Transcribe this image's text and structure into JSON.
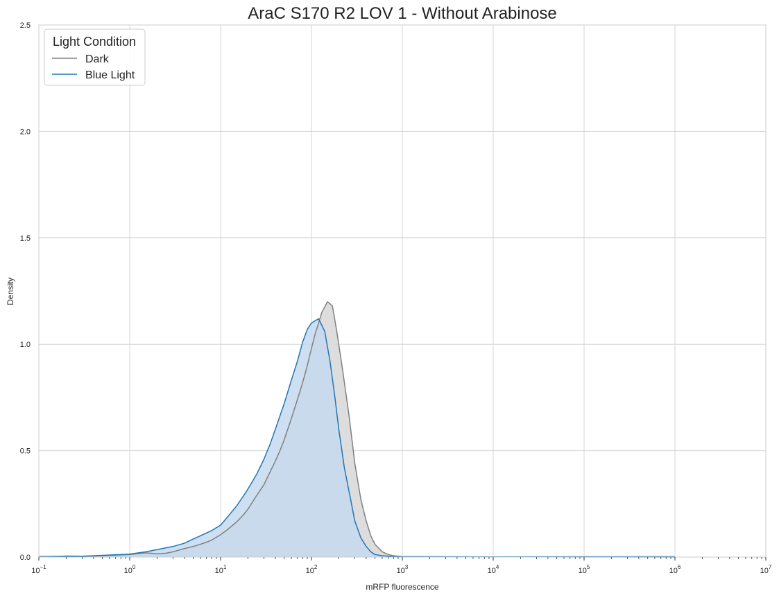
{
  "chart_data": {
    "type": "area",
    "title": "AraC S170 R2 LOV 1 - Without Arabinose",
    "xlabel": "mRFP fluorescence",
    "ylabel": "Density",
    "xscale": "log",
    "xlim": [
      0.1,
      10000000
    ],
    "ylim": [
      0,
      2.5
    ],
    "x_tick_labels": [
      {
        "base": "10",
        "exp": "−1"
      },
      {
        "base": "10",
        "exp": "0"
      },
      {
        "base": "10",
        "exp": "1"
      },
      {
        "base": "10",
        "exp": "2"
      },
      {
        "base": "10",
        "exp": "3"
      },
      {
        "base": "10",
        "exp": "4"
      },
      {
        "base": "10",
        "exp": "5"
      },
      {
        "base": "10",
        "exp": "6"
      },
      {
        "base": "10",
        "exp": "7"
      }
    ],
    "y_ticks": [
      0.0,
      0.5,
      1.0,
      1.5,
      2.0,
      2.5
    ],
    "y_tick_labels": [
      "0.0",
      "0.5",
      "1.0",
      "1.5",
      "2.0",
      "2.5"
    ],
    "grid": true,
    "legend": {
      "title": "Light Condition",
      "position": "top-left"
    },
    "series": [
      {
        "name": "Dark",
        "color": "#808080",
        "fill": "#d9d9d9",
        "points": [
          [
            0.1,
            0.003
          ],
          [
            0.15,
            0.002
          ],
          [
            0.2,
            0.005
          ],
          [
            0.3,
            0.004
          ],
          [
            0.5,
            0.006
          ],
          [
            0.8,
            0.01
          ],
          [
            1.0,
            0.012
          ],
          [
            1.5,
            0.02
          ],
          [
            2.0,
            0.015
          ],
          [
            2.5,
            0.018
          ],
          [
            3.0,
            0.025
          ],
          [
            4.0,
            0.04
          ],
          [
            5.0,
            0.05
          ],
          [
            6.0,
            0.06
          ],
          [
            7.0,
            0.07
          ],
          [
            8.0,
            0.08
          ],
          [
            10.0,
            0.105
          ],
          [
            12.0,
            0.13
          ],
          [
            15.0,
            0.165
          ],
          [
            18.0,
            0.2
          ],
          [
            20.0,
            0.225
          ],
          [
            25.0,
            0.29
          ],
          [
            30.0,
            0.34
          ],
          [
            35.0,
            0.4
          ],
          [
            40.0,
            0.45
          ],
          [
            45.0,
            0.5
          ],
          [
            50.0,
            0.55
          ],
          [
            60.0,
            0.65
          ],
          [
            70.0,
            0.74
          ],
          [
            80.0,
            0.82
          ],
          [
            90.0,
            0.9
          ],
          [
            100.0,
            0.98
          ],
          [
            110.0,
            1.05
          ],
          [
            120.0,
            1.1
          ],
          [
            130.0,
            1.15
          ],
          [
            150.0,
            1.2
          ],
          [
            170.0,
            1.18
          ],
          [
            190.0,
            1.06
          ],
          [
            220.0,
            0.88
          ],
          [
            260.0,
            0.66
          ],
          [
            300.0,
            0.44
          ],
          [
            350.0,
            0.27
          ],
          [
            400.0,
            0.17
          ],
          [
            450.0,
            0.1
          ],
          [
            500.0,
            0.06
          ],
          [
            600.0,
            0.025
          ],
          [
            700.0,
            0.012
          ],
          [
            800.0,
            0.006
          ],
          [
            1000.0,
            0.002
          ],
          [
            3000.0,
            0.001
          ],
          [
            100000.0,
            0.0005
          ],
          [
            1000000.0,
            0.0
          ]
        ]
      },
      {
        "name": "Blue Light",
        "color": "#1f77b4",
        "fill": "#c4d9ee",
        "points": [
          [
            0.1,
            0.002
          ],
          [
            0.2,
            0.004
          ],
          [
            0.3,
            0.004
          ],
          [
            0.5,
            0.008
          ],
          [
            0.8,
            0.012
          ],
          [
            1.0,
            0.014
          ],
          [
            1.5,
            0.025
          ],
          [
            2.0,
            0.035
          ],
          [
            3.0,
            0.05
          ],
          [
            4.0,
            0.065
          ],
          [
            5.0,
            0.085
          ],
          [
            6.0,
            0.1
          ],
          [
            8.0,
            0.125
          ],
          [
            10.0,
            0.15
          ],
          [
            12.0,
            0.19
          ],
          [
            15.0,
            0.24
          ],
          [
            18.0,
            0.29
          ],
          [
            20.0,
            0.32
          ],
          [
            25.0,
            0.39
          ],
          [
            30.0,
            0.46
          ],
          [
            35.0,
            0.53
          ],
          [
            40.0,
            0.6
          ],
          [
            50.0,
            0.72
          ],
          [
            60.0,
            0.83
          ],
          [
            70.0,
            0.92
          ],
          [
            80.0,
            1.01
          ],
          [
            90.0,
            1.07
          ],
          [
            100.0,
            1.1
          ],
          [
            120.0,
            1.12
          ],
          [
            140.0,
            1.06
          ],
          [
            160.0,
            0.92
          ],
          [
            180.0,
            0.76
          ],
          [
            200.0,
            0.6
          ],
          [
            230.0,
            0.42
          ],
          [
            270.0,
            0.27
          ],
          [
            300.0,
            0.17
          ],
          [
            350.0,
            0.09
          ],
          [
            400.0,
            0.05
          ],
          [
            450.0,
            0.025
          ],
          [
            500.0,
            0.012
          ],
          [
            600.0,
            0.006
          ],
          [
            800.0,
            0.003
          ],
          [
            1000.0,
            0.002
          ],
          [
            10000.0,
            0.001
          ],
          [
            100000.0,
            0.0015
          ],
          [
            1000000.0,
            0.002
          ]
        ]
      }
    ]
  }
}
